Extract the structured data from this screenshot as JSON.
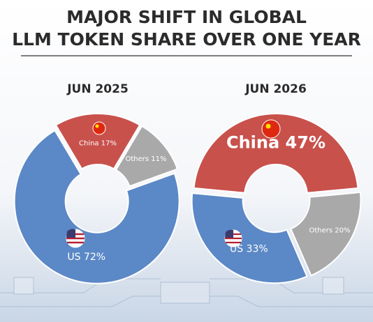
{
  "title": [
    "MAJOR SHIFT IN GLOBAL",
    "LLM TOKEN SHARE OVER ONE YEAR"
  ],
  "chart_data": [
    {
      "type": "pie",
      "title": "JUN 2025",
      "categories": [
        "China",
        "Others",
        "US"
      ],
      "values": [
        17,
        11,
        72
      ],
      "value_labels": [
        "China 17%",
        "Others 11%",
        "US 72%"
      ],
      "colors": [
        "#c8514c",
        "#a9a9a9",
        "#5b88c6"
      ]
    },
    {
      "type": "pie",
      "title": "JUN 2026",
      "categories": [
        "China",
        "Others",
        "US"
      ],
      "values": [
        47,
        20,
        33
      ],
      "value_labels": [
        "China 47%",
        "Others 20%",
        "US 33%"
      ],
      "colors": [
        "#c8514c",
        "#a9a9a9",
        "#5b88c6"
      ]
    }
  ]
}
